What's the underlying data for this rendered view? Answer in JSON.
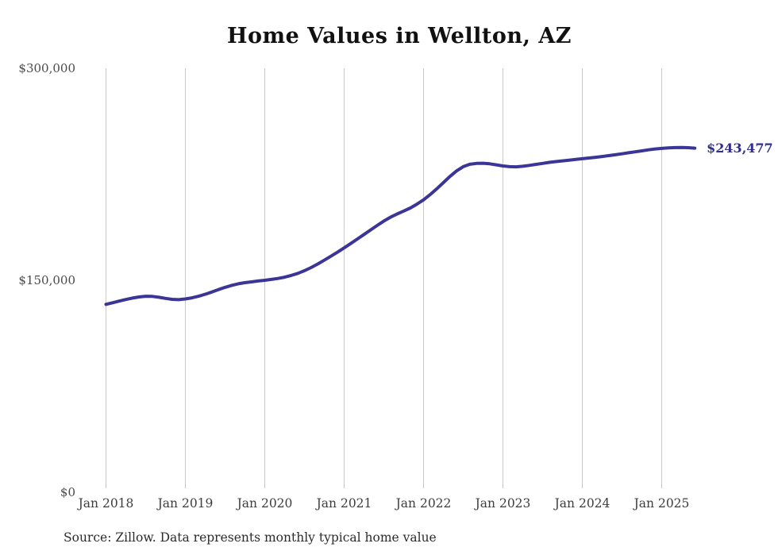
{
  "title": "Home Values in Wellton, AZ",
  "source_note": "Source: Zillow. Data represents monthly typical home value",
  "current_value_label": "$243,477",
  "colors": {
    "line": "#3a3597",
    "current_value_label": "#312e90",
    "gridline": "#c9c9c9",
    "axis_text": "#4a4a4a",
    "title_text": "#111111",
    "background": "#ffffff"
  },
  "chart_data": {
    "type": "line",
    "title": "Home Values in Wellton, AZ",
    "xlabel": "",
    "ylabel": "",
    "ylim": [
      0,
      300000
    ],
    "grid": "vertical-only",
    "legend": "none",
    "x_start_month": "Jan 2018",
    "x_end_month": "Jun 2025",
    "months_per_x_tick": 12,
    "x_tick_labels": [
      "Jan 2018",
      "Jan 2019",
      "Jan 2020",
      "Jan 2021",
      "Jan 2022",
      "Jan 2023",
      "Jan 2024",
      "Jan 2025"
    ],
    "y_ticks": [
      {
        "label": "$0",
        "value": 0
      },
      {
        "label": "$150,000",
        "value": 150000
      },
      {
        "label": "$300,000",
        "value": 300000
      }
    ],
    "end_value": 243477,
    "series": [
      {
        "name": "Monthly typical home value",
        "monthly_values": [
          133000,
          134100,
          135300,
          136400,
          137400,
          138200,
          138700,
          138600,
          138000,
          137200,
          136500,
          136300,
          136800,
          137600,
          138700,
          140100,
          141700,
          143400,
          145000,
          146400,
          147500,
          148300,
          148900,
          149500,
          150000,
          150600,
          151300,
          152200,
          153400,
          154900,
          156800,
          159000,
          161500,
          164200,
          167000,
          169900,
          172900,
          176000,
          179200,
          182400,
          185600,
          188800,
          191900,
          194600,
          196900,
          199000,
          201100,
          203900,
          206900,
          210600,
          214700,
          219100,
          223500,
          227400,
          230400,
          232100,
          232700,
          232800,
          232400,
          231700,
          230900,
          230400,
          230300,
          230700,
          231300,
          232000,
          232700,
          233400,
          234000,
          234500,
          235000,
          235500,
          236000,
          236500,
          237000,
          237600,
          238200,
          238800,
          239500,
          240200,
          240900,
          241600,
          242300,
          242900,
          243300,
          243700,
          243900,
          244000,
          243800,
          243477
        ]
      }
    ]
  }
}
